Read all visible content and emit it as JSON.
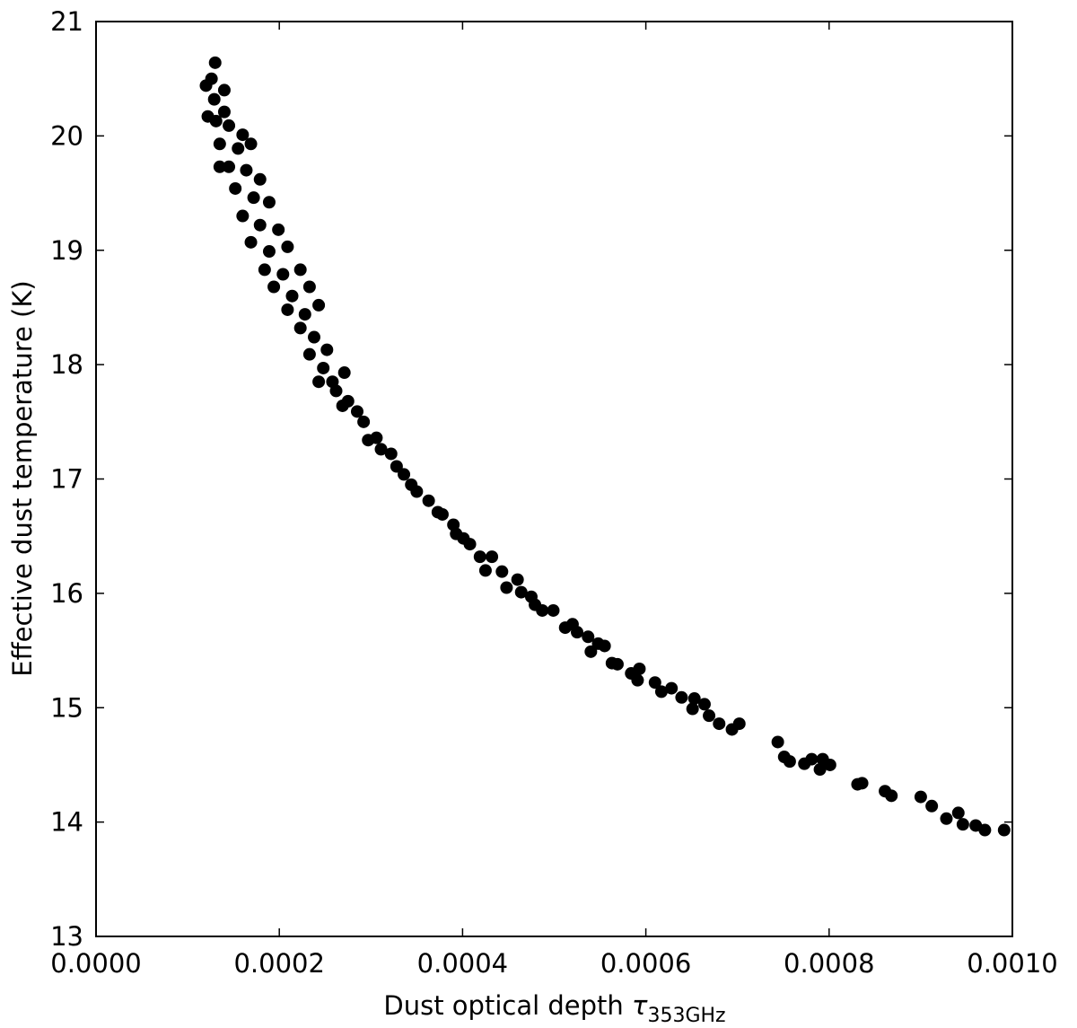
{
  "chart_data": {
    "type": "scatter",
    "xlabel": "Dust optical depth",
    "xlabel_symbol": "τ",
    "xlabel_subscript": "353GHz",
    "ylabel": "Effective dust temperature (K)",
    "color": "#000000",
    "xlim": [
      0,
      0.001
    ],
    "ylim": [
      13,
      21
    ],
    "xticks": [
      {
        "value": 0,
        "label": "0.0000"
      },
      {
        "value": 0.0002,
        "label": "0.0002"
      },
      {
        "value": 0.0004,
        "label": "0.0004"
      },
      {
        "value": 0.0006,
        "label": "0.0006"
      },
      {
        "value": 0.0008,
        "label": "0.0008"
      },
      {
        "value": 0.001,
        "label": "0.0010"
      }
    ],
    "yticks": [
      13,
      14,
      15,
      16,
      17,
      18,
      19,
      20,
      21
    ],
    "x": [
      0.000991,
      0.00097,
      0.00096,
      0.000946,
      0.000941,
      0.000928,
      0.000912,
      0.0009,
      0.000868,
      0.000861,
      0.000836,
      0.000831,
      0.000801,
      0.000793,
      0.00079,
      0.000781,
      0.000773,
      0.000757,
      0.000751,
      0.000744,
      0.000702,
      0.000694,
      0.00068,
      0.000669,
      0.000664,
      0.000653,
      0.000651,
      0.000639,
      0.000628,
      0.000617,
      0.00061,
      0.000593,
      0.000591,
      0.000584,
      0.000569,
      0.000563,
      0.000555,
      0.000548,
      0.00054,
      0.000537,
      0.000525,
      0.00052,
      0.000512,
      0.000499,
      0.000487,
      0.000479,
      0.000475,
      0.000464,
      0.00046,
      0.000448,
      0.000443,
      0.000432,
      0.000425,
      0.000419,
      0.000408,
      0.000401,
      0.000393,
      0.00039,
      0.000378,
      0.000373,
      0.000363,
      0.00035,
      0.000344,
      0.000336,
      0.000328,
      0.000322,
      0.000311,
      0.000306,
      0.000297,
      0.000292,
      0.000285,
      0.000275,
      0.000271,
      0.000269,
      0.000262,
      0.000258,
      0.00013,
      0.000126,
      0.000129,
      0.00014,
      0.000131,
      0.000145,
      0.000135,
      0.000155,
      0.000169,
      0.000145,
      0.000164,
      0.000179,
      0.000152,
      0.000172,
      0.000189,
      0.00016,
      0.000179,
      0.000199,
      0.000169,
      0.000189,
      0.000209,
      0.000184,
      0.000204,
      0.000223,
      0.000194,
      0.000214,
      0.000233,
      0.000209,
      0.000228,
      0.000243,
      0.000223,
      0.000238,
      0.000252,
      0.000233,
      0.000248,
      0.000243,
      0.00012,
      0.000122,
      0.00014,
      0.00016,
      0.000135
    ],
    "values": [
      13.93,
      13.93,
      13.97,
      13.98,
      14.08,
      14.03,
      14.14,
      14.22,
      14.23,
      14.27,
      14.34,
      14.33,
      14.5,
      14.55,
      14.46,
      14.55,
      14.51,
      14.53,
      14.57,
      14.7,
      14.86,
      14.81,
      14.86,
      14.93,
      15.03,
      15.08,
      14.99,
      15.09,
      15.17,
      15.14,
      15.22,
      15.34,
      15.24,
      15.3,
      15.38,
      15.39,
      15.54,
      15.56,
      15.49,
      15.62,
      15.66,
      15.73,
      15.7,
      15.85,
      15.85,
      15.9,
      15.97,
      16.01,
      16.12,
      16.05,
      16.19,
      16.32,
      16.2,
      16.32,
      16.43,
      16.48,
      16.52,
      16.6,
      16.69,
      16.71,
      16.81,
      16.89,
      16.95,
      17.04,
      17.11,
      17.22,
      17.26,
      17.36,
      17.34,
      17.5,
      17.59,
      17.68,
      17.93,
      17.64,
      17.77,
      17.85,
      20.64,
      20.5,
      20.32,
      20.4,
      20.13,
      20.09,
      19.93,
      19.89,
      19.93,
      19.73,
      19.7,
      19.62,
      19.54,
      19.46,
      19.42,
      19.3,
      19.22,
      19.18,
      19.07,
      18.99,
      19.03,
      18.83,
      18.79,
      18.83,
      18.68,
      18.6,
      18.68,
      18.48,
      18.44,
      18.52,
      18.32,
      18.24,
      18.13,
      18.09,
      17.97,
      17.85,
      20.44,
      20.17,
      20.21,
      20.01,
      19.73
    ]
  }
}
